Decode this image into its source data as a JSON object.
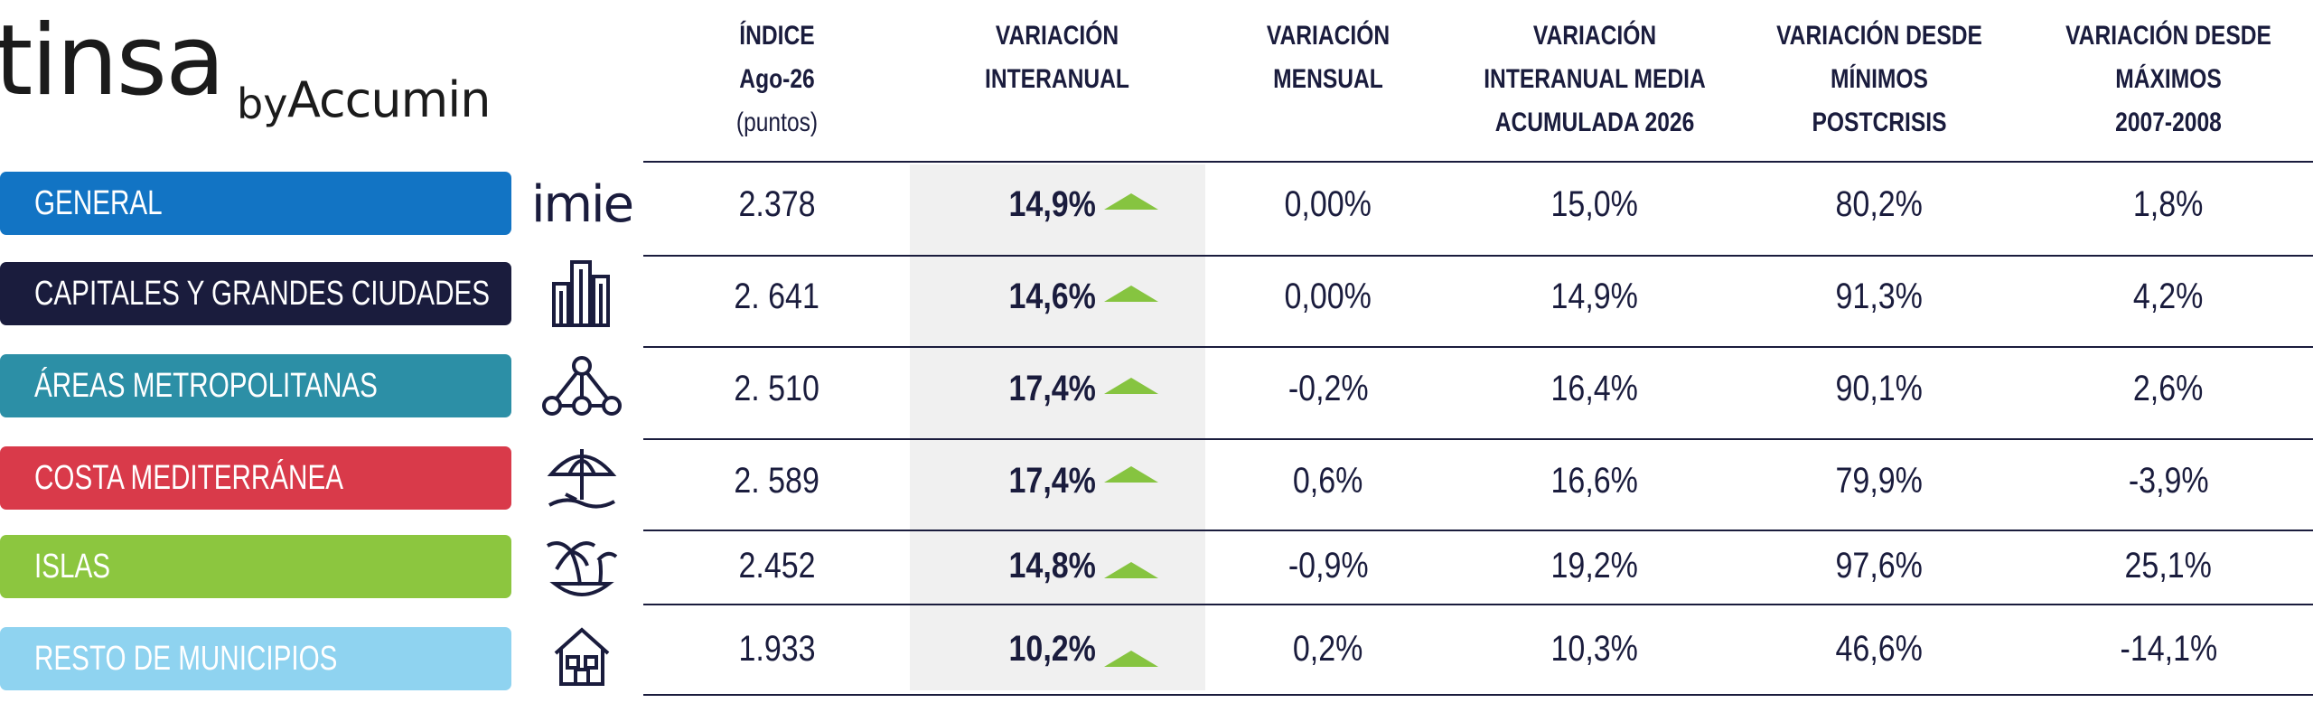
{
  "logo": {
    "main": "tinsa",
    "by": "by",
    "partner": "Accumin"
  },
  "headers": {
    "indice": [
      "ÍNDICE",
      "Ago-26"
    ],
    "indice_sub": "(puntos)",
    "var_interanual": [
      "VARIACIÓN",
      "INTERANUAL"
    ],
    "var_mensual": [
      "VARIACIÓN",
      "MENSUAL"
    ],
    "var_media": [
      "VARIACIÓN",
      "INTERANUAL MEDIA",
      "ACUMULADA 2026"
    ],
    "var_minimos": [
      "VARIACIÓN DESDE",
      "MÍNIMOS",
      "POSTCRISIS"
    ],
    "var_maximos": [
      "VARIACIÓN DESDE",
      "MÁXIMOS",
      "2007-2008"
    ]
  },
  "colors": {
    "general": "#1274c4",
    "capitales": "#1a1c3d",
    "areas": "#2c8fa6",
    "costa": "#d93a4a",
    "islas": "#8cc63f",
    "resto": "#8fd3f0",
    "arrow": "#86c440"
  },
  "rows": [
    {
      "label": "GENERAL",
      "icon": "imie-logo-icon",
      "icon_text": "imie",
      "indice": "2.378",
      "interanual": "14,9%",
      "mensual": "0,00%",
      "media": "15,0%",
      "minimos": "80,2%",
      "maximos": "1,8%",
      "trend": "up"
    },
    {
      "label": "CAPITALES Y GRANDES CIUDADES",
      "icon": "buildings-icon",
      "indice": "2. 641",
      "interanual": "14,6%",
      "mensual": "0,00%",
      "media": "14,9%",
      "minimos": "91,3%",
      "maximos": "4,2%",
      "trend": "up"
    },
    {
      "label": "ÁREAS METROPOLITANAS",
      "icon": "network-icon",
      "indice": "2. 510",
      "interanual": "17,4%",
      "mensual": "-0,2%",
      "media": "16,4%",
      "minimos": "90,1%",
      "maximos": "2,6%",
      "trend": "up"
    },
    {
      "label": "COSTA MEDITERRÁNEA",
      "icon": "beach-umbrella-icon",
      "indice": "2. 589",
      "interanual": "17,4%",
      "mensual": "0,6%",
      "media": "16,6%",
      "minimos": "79,9%",
      "maximos": "-3,9%",
      "trend": "up"
    },
    {
      "label": "ISLAS",
      "icon": "island-palm-icon",
      "indice": "2.452",
      "interanual": "14,8%",
      "mensual": "-0,9%",
      "media": "19,2%",
      "minimos": "97,6%",
      "maximos": "25,1%",
      "trend": "up"
    },
    {
      "label": "RESTO DE MUNICIPIOS",
      "icon": "house-icon",
      "indice": "1.933",
      "interanual": "10,2%",
      "mensual": "0,2%",
      "media": "10,3%",
      "minimos": "46,6%",
      "maximos": "-14,1%",
      "trend": "up"
    }
  ]
}
